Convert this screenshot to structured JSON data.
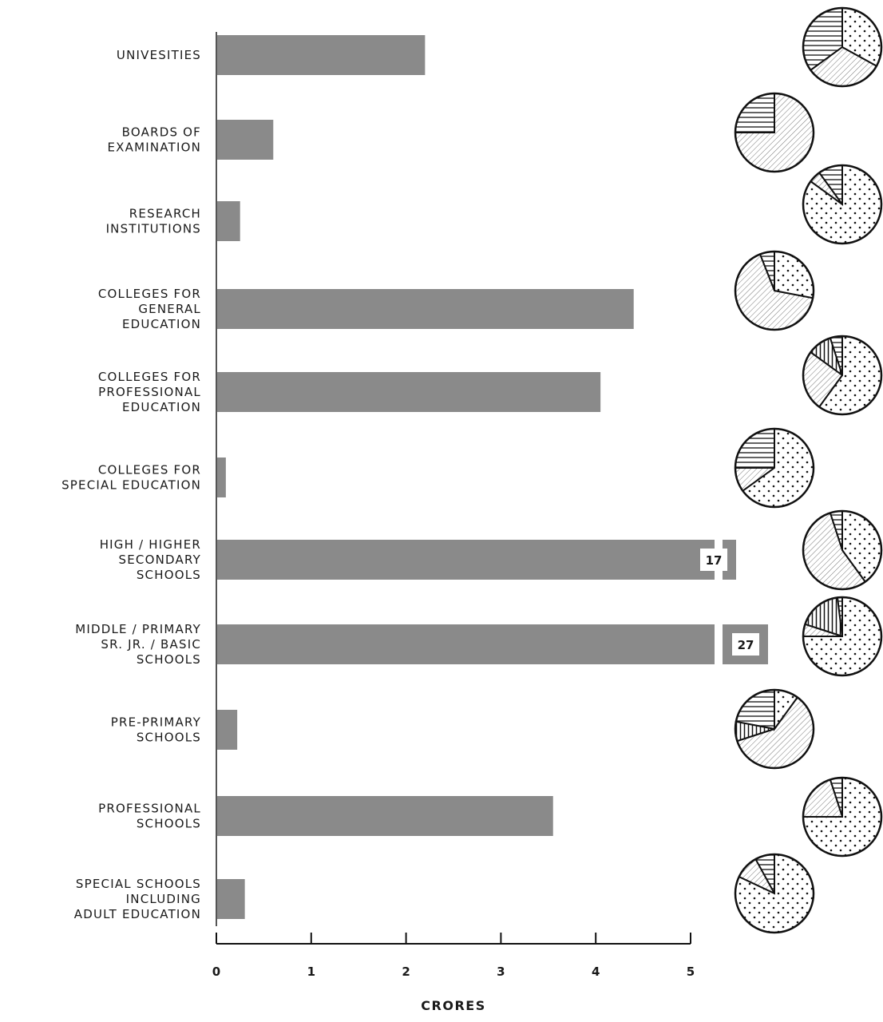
{
  "chart_data": {
    "type": "bar",
    "orientation": "horizontal",
    "categories": [
      [
        "UNIVESITIES"
      ],
      [
        "BOARDS OF",
        "EXAMINATION"
      ],
      [
        "RESEARCH",
        "INSTITUTIONS"
      ],
      [
        "COLLEGES FOR",
        "GENERAL",
        "EDUCATION"
      ],
      [
        "COLLEGES FOR",
        "PROFESSIONAL",
        "EDUCATION"
      ],
      [
        "COLLEGES FOR",
        "SPECIAL EDUCATION"
      ],
      [
        "HIGH / HIGHER",
        "SECONDARY",
        "SCHOOLS"
      ],
      [
        "MIDDLE / PRIMARY",
        "SR. JR. / BASIC",
        "SCHOOLS"
      ],
      [
        "PRE-PRIMARY",
        "SCHOOLS"
      ],
      [
        "PROFESSIONAL",
        "SCHOOLS"
      ],
      [
        "SPECIAL SCHOOLS",
        "INCLUDING",
        "ADULT EDUCATION"
      ]
    ],
    "values": [
      2.2,
      0.6,
      0.25,
      4.4,
      4.05,
      0.1,
      17,
      27,
      0.22,
      3.55,
      0.3
    ],
    "value_labels": [
      "",
      "",
      "",
      "",
      "",
      "",
      "17",
      "27",
      "",
      "",
      ""
    ],
    "x_ticks": [
      "0",
      "1",
      "2",
      "3",
      "4",
      "5"
    ],
    "xlim": [
      0,
      5
    ],
    "xlabel": "CRORES",
    "axis_break": true,
    "bar_color": "#8a8a8a",
    "pies": [
      {
        "hatched": 35,
        "diagonal": 32,
        "dotted": 33
      },
      {
        "hatched": 25,
        "diagonal": 75,
        "dotted": 0
      },
      {
        "hatched": 10,
        "diagonal": 5,
        "dotted": 85
      },
      {
        "hatched": 6,
        "diagonal": 66,
        "dotted": 28
      },
      {
        "hatched": 5,
        "vertical": 10,
        "diagonal": 25,
        "dotted": 60
      },
      {
        "hatched": 25,
        "diagonal": 10,
        "dotted": 65
      },
      {
        "hatched": 5,
        "diagonal": 55,
        "dotted": 40
      },
      {
        "hatched": 2,
        "vertical": 18,
        "diagonal": 5,
        "dotted": 75
      },
      {
        "hatched": 22,
        "vertical": 8,
        "diagonal": 60,
        "dotted": 10
      },
      {
        "hatched": 5,
        "diagonal": 20,
        "dotted": 75
      },
      {
        "hatched": 8,
        "diagonal": 10,
        "dotted": 82
      }
    ]
  }
}
